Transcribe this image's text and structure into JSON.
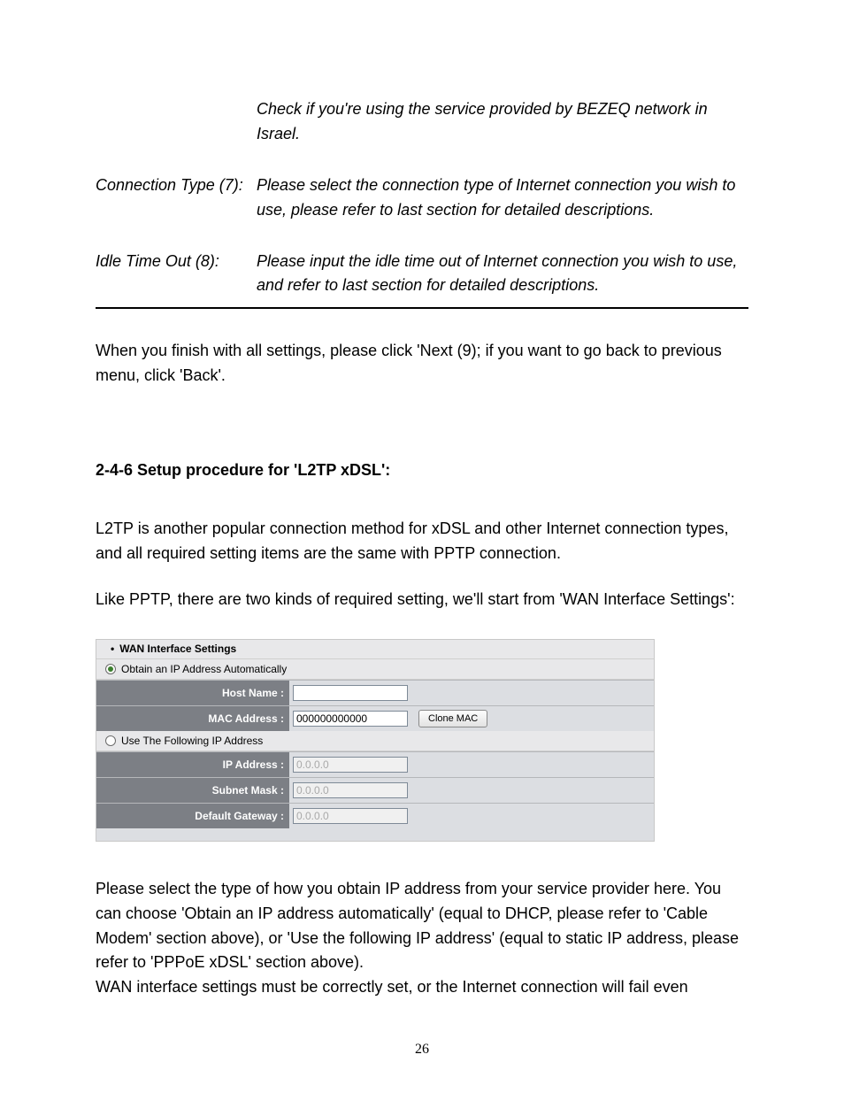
{
  "defs": {
    "bezeq_note": "Check if you're using the service provided by BEZEQ network in Israel.",
    "connection_type_label": "Connection Type (7):",
    "connection_type_text": "Please select the connection type of Internet connection you wish to use, please refer to last section for detailed descriptions.",
    "idle_label": "Idle Time Out (8):",
    "idle_text": "Please input the idle time out of Internet connection you wish to use, and refer to last section for detailed descriptions."
  },
  "para_after_defs": "When you finish with all settings, please click 'Next (9); if you want to go back to previous menu, click 'Back'.",
  "heading": "2-4-6 Setup procedure for 'L2TP xDSL':",
  "intro1": "L2TP is another popular connection method for xDSL and other Internet connection types, and all required setting items are the same with PPTP connection.",
  "intro2": "Like PPTP, there are two kinds of required setting, we'll start from 'WAN Interface Settings':",
  "panel": {
    "title": "WAN Interface Settings",
    "radio_auto": "Obtain an IP Address Automatically",
    "radio_static": "Use The Following IP Address",
    "host_name_label": "Host Name :",
    "mac_label": "MAC Address :",
    "mac_value": "000000000000",
    "clone_btn": "Clone MAC",
    "ip_label": "IP Address :",
    "ip_value": "0.0.0.0",
    "mask_label": "Subnet Mask :",
    "mask_value": "0.0.0.0",
    "gw_label": "Default Gateway :",
    "gw_value": "0.0.0.0",
    "colors": {
      "panel_bg": "#7c7f85",
      "head_bg": "#e8e8ea",
      "cell_bg": "#dcdee2",
      "label_text": "#ffffff",
      "border": "#c8c8c8",
      "radio_checked": "#3b7f2e"
    }
  },
  "outro1": "Please select the type of how you obtain IP address from your service provider here. You can choose 'Obtain an IP address automatically' (equal to DHCP, please refer to 'Cable Modem' section above), or 'Use the following IP address' (equal to static IP address, please refer to 'PPPoE xDSL' section above).",
  "outro2": "WAN interface settings must be correctly set, or the Internet connection will fail even",
  "page_number": "26"
}
